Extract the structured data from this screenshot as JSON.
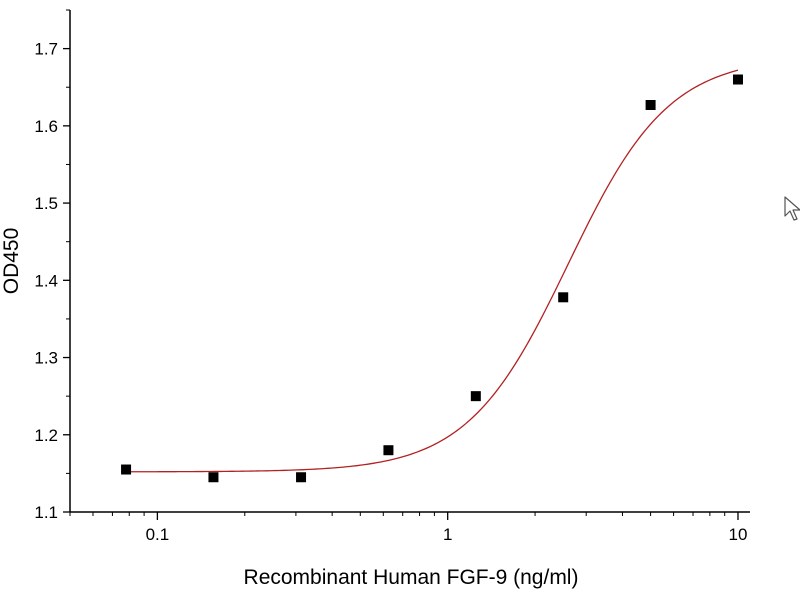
{
  "chart_data": {
    "type": "scatter",
    "xlabel": "Recombinant Human FGF-9 (ng/ml)",
    "ylabel": "OD450",
    "xscale": "log",
    "xlim": [
      0.05,
      11
    ],
    "ylim": [
      1.1,
      1.75
    ],
    "x_ticks": [
      0.1,
      1,
      10
    ],
    "x_tick_labels": [
      "0.1",
      "1",
      "10"
    ],
    "y_ticks": [
      1.1,
      1.2,
      1.3,
      1.4,
      1.5,
      1.6,
      1.7
    ],
    "y_tick_labels": [
      "1.1",
      "1.2",
      "1.3",
      "1.4",
      "1.5",
      "1.6",
      "1.7"
    ],
    "grid": false,
    "series": [
      {
        "marker": "square",
        "color": "#000000",
        "x": [
          0.078,
          0.156,
          0.3125,
          0.625,
          1.25,
          2.5,
          5,
          10
        ],
        "y": [
          1.155,
          1.145,
          1.145,
          1.18,
          1.25,
          1.378,
          1.627,
          1.66
        ]
      }
    ],
    "fit_curve": {
      "type": "4PL",
      "color": "#b22222",
      "bottom": 1.152,
      "top": 1.69,
      "ec50": 2.6,
      "hill": 2.5,
      "x_range": [
        0.078,
        10
      ]
    }
  },
  "cursor_icon": "mouse-pointer-icon"
}
